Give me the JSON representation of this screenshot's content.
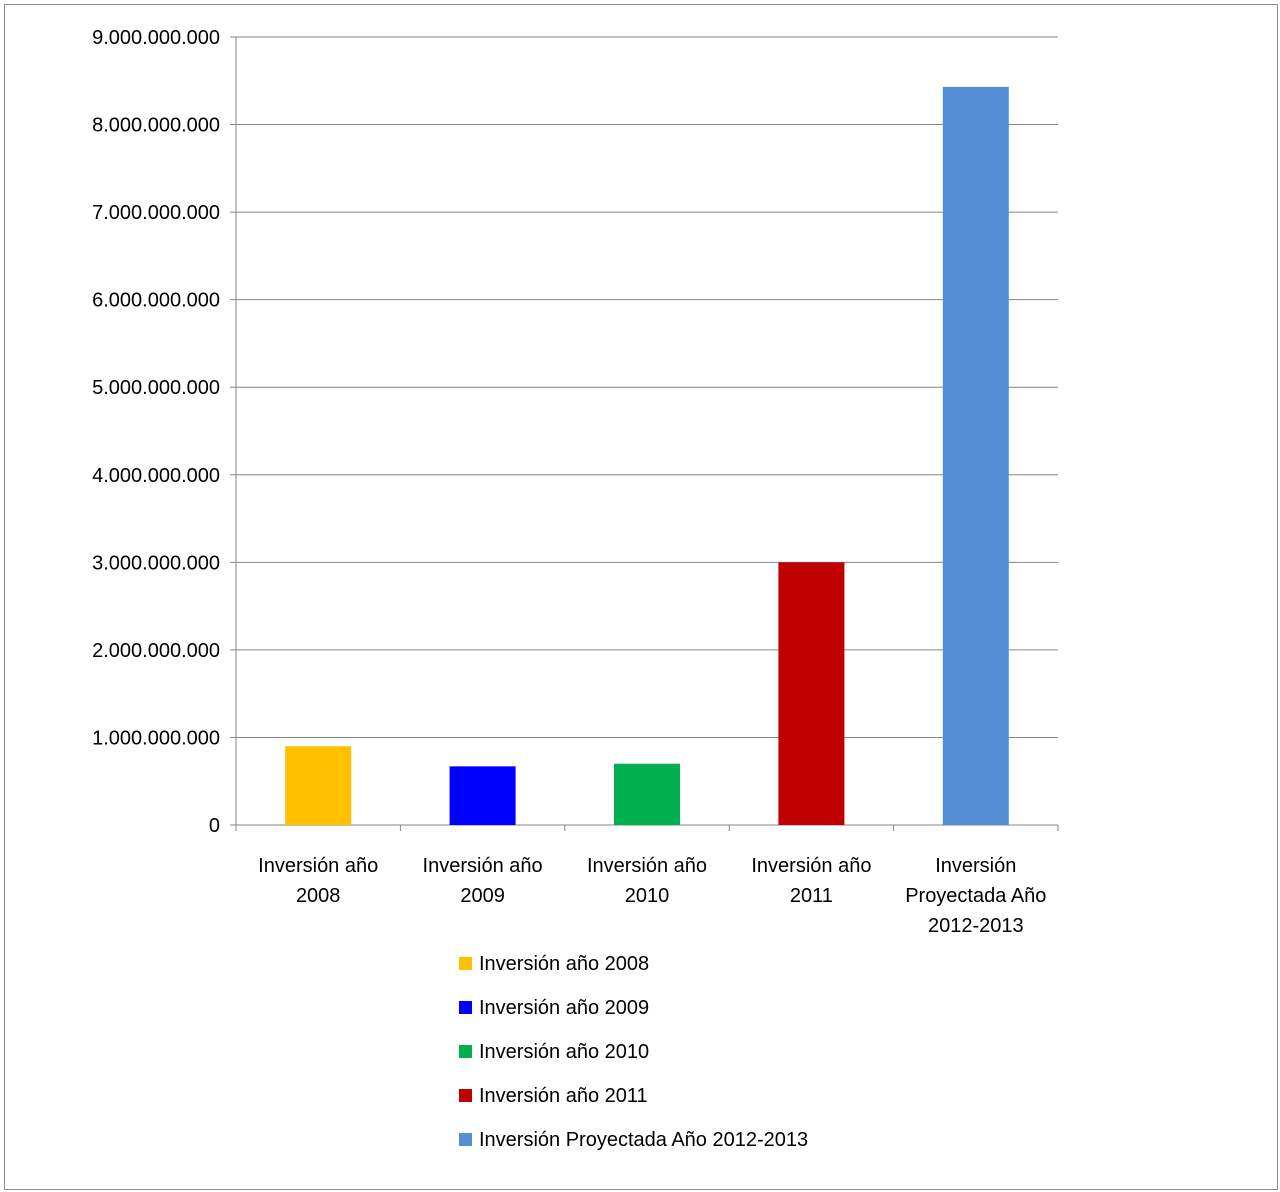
{
  "chart_data": {
    "type": "bar",
    "title": "",
    "xlabel": "",
    "ylabel": "",
    "categories": [
      [
        "Inversión año",
        "2008"
      ],
      [
        "Inversión año",
        "2009"
      ],
      [
        "Inversión año",
        "2010"
      ],
      [
        "Inversión año",
        "2011"
      ],
      [
        "Inversión",
        "Proyectada Año",
        "2012-2013"
      ]
    ],
    "series_names": [
      "Inversión año 2008",
      "Inversión año 2009",
      "Inversión año 2010",
      "Inversión año 2011",
      "Inversión Proyectada Año 2012-2013"
    ],
    "values": [
      900000000,
      670000000,
      700000000,
      3000000000,
      8430000000
    ],
    "colors": [
      "#ffc000",
      "#0000ff",
      "#00b050",
      "#c00000",
      "#558ed5"
    ],
    "ylim": [
      0,
      9000000000
    ],
    "yticks": [
      "0",
      "1.000.000.000",
      "2.000.000.000",
      "3.000.000.000",
      "4.000.000.000",
      "5.000.000.000",
      "6.000.000.000",
      "7.000.000.000",
      "8.000.000.000",
      "9.000.000.000"
    ],
    "grid": true,
    "legend_position": "bottom"
  }
}
